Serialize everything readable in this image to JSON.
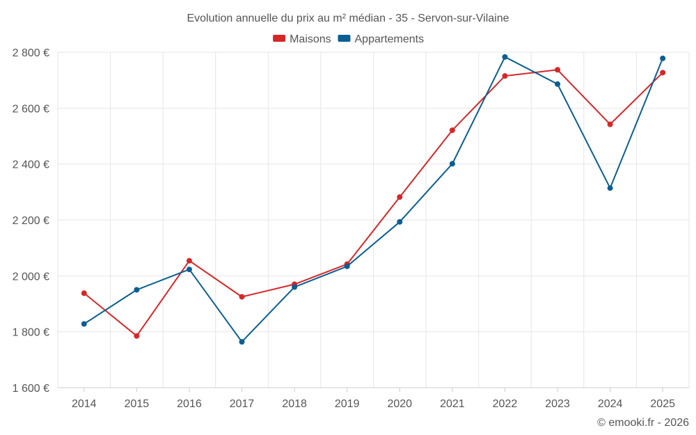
{
  "chart_data": {
    "type": "line",
    "title": "Evolution annuelle du prix au m² médian - 35 - Servon-sur-Vilaine",
    "categories": [
      "2014",
      "2015",
      "2016",
      "2017",
      "2018",
      "2019",
      "2020",
      "2021",
      "2022",
      "2023",
      "2024",
      "2025"
    ],
    "series": [
      {
        "name": "Maisons",
        "color": "#d62728",
        "values": [
          1938,
          1785,
          2054,
          1925,
          1970,
          2042,
          2282,
          2521,
          2715,
          2737,
          2542,
          2727
        ]
      },
      {
        "name": "Appartements",
        "color": "#0a5e91",
        "values": [
          1828,
          1950,
          2023,
          1764,
          1960,
          2034,
          2193,
          2401,
          2783,
          2686,
          2314,
          2778
        ]
      }
    ],
    "y_ticks": [
      "1 600 €",
      "1 800 €",
      "2 000 €",
      "2 200 €",
      "2 400 €",
      "2 600 €",
      "2 800 €"
    ],
    "y_tick_values": [
      1600,
      1800,
      2000,
      2200,
      2400,
      2600,
      2800
    ],
    "ylim": [
      1600,
      2800
    ],
    "xlabel": "",
    "ylabel": "",
    "grid": true,
    "legend_position": "top-center"
  },
  "credit": "© emooki.fr - 2026"
}
